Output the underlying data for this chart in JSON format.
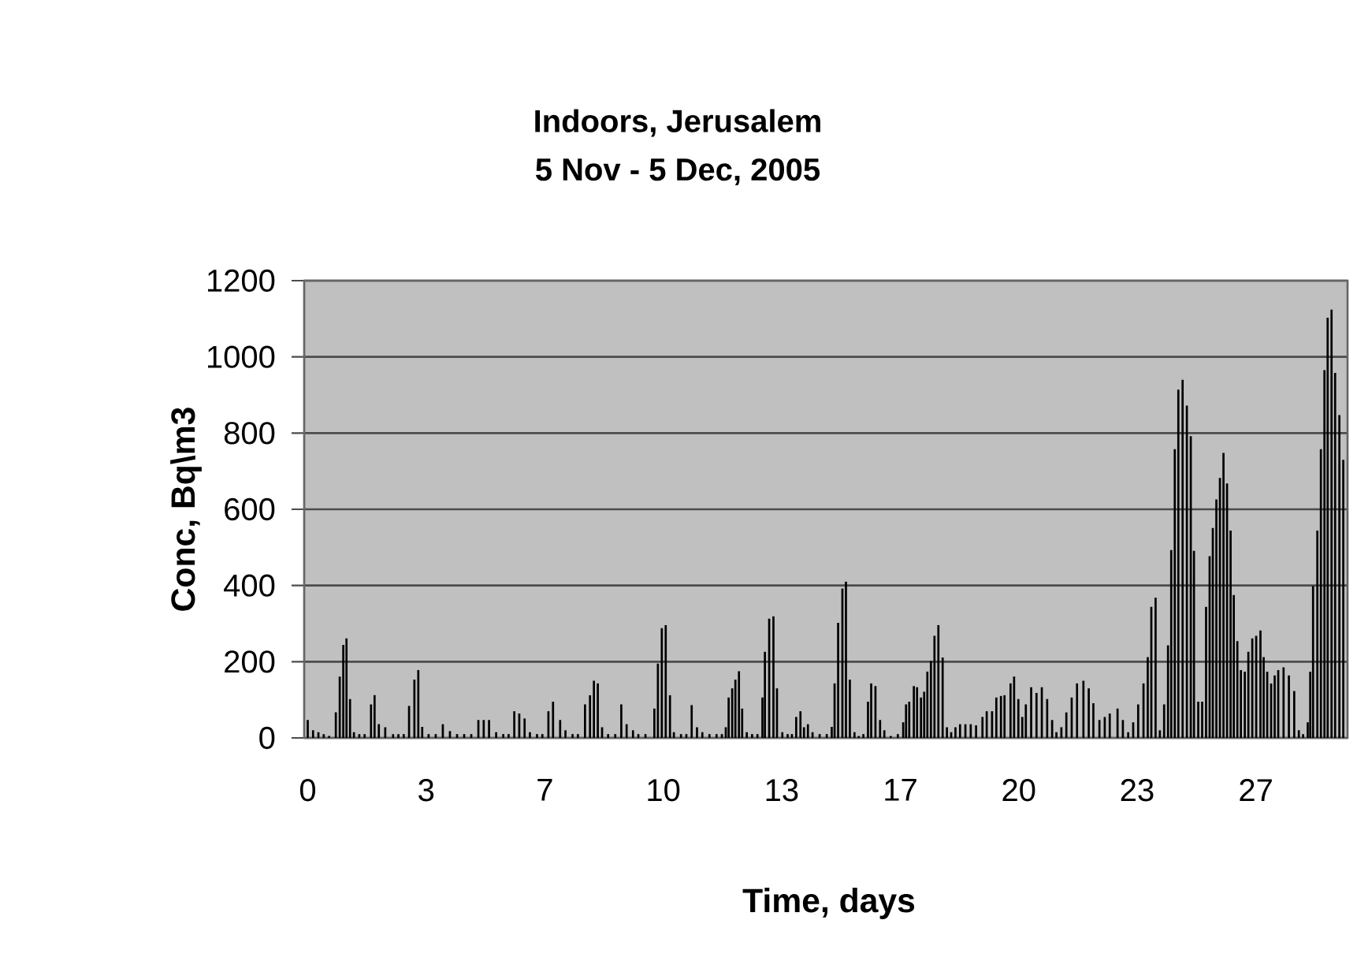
{
  "chart_data": {
    "type": "bar",
    "title": "Indoors, Jerusalem",
    "subtitle": "5 Nov - 5 Dec, 2005",
    "xlabel": "Time, days",
    "ylabel": "Conc, Bq\\m3",
    "color": "#000000",
    "grid": "y",
    "xlim": [
      -0.1,
      29.25
    ],
    "ylim": [
      0,
      1200
    ],
    "yticks": [
      0,
      200,
      400,
      600,
      800,
      1000,
      1200
    ],
    "xticks": [
      0,
      {
        "value": 3.33,
        "label": "3"
      },
      {
        "value": 6.67,
        "label": "7"
      },
      10,
      {
        "value": 13.33,
        "label": "13"
      },
      {
        "value": 16.67,
        "label": "17"
      },
      20,
      {
        "value": 23.33,
        "label": "23"
      },
      {
        "value": 26.67,
        "label": "27"
      }
    ],
    "x": [
      0,
      0.15,
      0.3,
      0.45,
      0.6,
      0.79,
      0.9,
      1.0,
      1.09,
      1.19,
      1.3,
      1.45,
      1.6,
      1.78,
      1.88,
      2.0,
      2.18,
      2.4,
      2.55,
      2.7,
      2.85,
      3.0,
      3.11,
      3.22,
      3.4,
      3.6,
      3.8,
      4.0,
      4.2,
      4.4,
      4.6,
      4.8,
      4.95,
      5.1,
      5.3,
      5.5,
      5.65,
      5.81,
      5.95,
      6.1,
      6.25,
      6.45,
      6.6,
      6.77,
      6.9,
      7.1,
      7.25,
      7.45,
      7.6,
      7.8,
      7.94,
      8.05,
      8.16,
      8.28,
      8.45,
      8.65,
      8.82,
      8.97,
      9.15,
      9.3,
      9.5,
      9.75,
      9.85,
      9.96,
      10.07,
      10.19,
      10.3,
      10.5,
      10.65,
      10.8,
      10.95,
      11.1,
      11.3,
      11.5,
      11.65,
      11.76,
      11.84,
      11.94,
      12.03,
      12.13,
      12.22,
      12.35,
      12.5,
      12.65,
      12.79,
      12.86,
      12.98,
      13.1,
      13.2,
      13.35,
      13.5,
      13.62,
      13.74,
      13.86,
      13.96,
      14.07,
      14.2,
      14.4,
      14.6,
      14.74,
      14.82,
      14.92,
      15.04,
      15.14,
      15.25,
      15.38,
      15.5,
      15.63,
      15.76,
      15.85,
      15.97,
      16.1,
      16.22,
      16.4,
      16.6,
      16.75,
      16.83,
      16.92,
      17.05,
      17.14,
      17.25,
      17.34,
      17.43,
      17.53,
      17.63,
      17.74,
      17.86,
      17.98,
      18.1,
      18.22,
      18.35,
      18.5,
      18.65,
      18.8,
      18.98,
      19.1,
      19.25,
      19.37,
      19.5,
      19.6,
      19.77,
      19.87,
      19.99,
      20.1,
      20.2,
      20.35,
      20.5,
      20.65,
      20.8,
      20.94,
      21.06,
      21.2,
      21.34,
      21.49,
      21.64,
      21.82,
      21.97,
      22.1,
      22.27,
      22.42,
      22.56,
      22.78,
      22.93,
      23.08,
      23.22,
      23.36,
      23.51,
      23.63,
      23.73,
      23.85,
      23.97,
      24.09,
      24.2,
      24.29,
      24.39,
      24.49,
      24.61,
      24.73,
      24.84,
      24.93,
      25.05,
      25.16,
      25.27,
      25.37,
      25.46,
      25.56,
      25.66,
      25.76,
      25.86,
      25.96,
      26.05,
      26.15,
      26.25,
      26.36,
      26.46,
      26.57,
      26.68,
      26.8,
      26.89,
      26.99,
      27.1,
      27.2,
      27.3,
      27.45,
      27.6,
      27.75,
      27.88,
      28.0,
      28.13,
      28.2,
      28.28,
      28.4,
      28.5,
      28.6,
      28.69,
      28.8,
      28.9,
      29.02,
      29.13
    ],
    "values": [
      47,
      20,
      15,
      10,
      5,
      67,
      161,
      244,
      261,
      102,
      15,
      10,
      10,
      88,
      112,
      36,
      28,
      10,
      10,
      10,
      84,
      153,
      178,
      29,
      10,
      10,
      36,
      18,
      10,
      10,
      10,
      47,
      47,
      47,
      15,
      10,
      10,
      70,
      64,
      51,
      15,
      10,
      10,
      70,
      95,
      47,
      20,
      10,
      10,
      88,
      112,
      150,
      143,
      28,
      10,
      10,
      88,
      36,
      20,
      10,
      10,
      77,
      195,
      288,
      296,
      112,
      15,
      10,
      10,
      86,
      28,
      15,
      10,
      10,
      10,
      28,
      106,
      130,
      153,
      175,
      77,
      15,
      10,
      10,
      106,
      226,
      313,
      319,
      130,
      15,
      10,
      10,
      55,
      70,
      28,
      36,
      15,
      10,
      10,
      29,
      143,
      302,
      392,
      410,
      153,
      15,
      5,
      10,
      95,
      143,
      136,
      47,
      20,
      5,
      10,
      41,
      88,
      95,
      136,
      133,
      106,
      121,
      174,
      202,
      268,
      296,
      211,
      28,
      15,
      28,
      36,
      36,
      36,
      33,
      55,
      70,
      70,
      106,
      110,
      112,
      143,
      161,
      102,
      55,
      88,
      133,
      118,
      133,
      102,
      47,
      15,
      28,
      67,
      106,
      143,
      150,
      130,
      91,
      47,
      55,
      64,
      77,
      47,
      15,
      41,
      88,
      143,
      212,
      344,
      368,
      20,
      88,
      243,
      493,
      758,
      914,
      940,
      872,
      792,
      491,
      95,
      95,
      344,
      477,
      551,
      626,
      682,
      748,
      668,
      544,
      375,
      254,
      178,
      174,
      226,
      261,
      268,
      282,
      212,
      174,
      143,
      164,
      178,
      185,
      164,
      123,
      20,
      10,
      41,
      174,
      399,
      544,
      758,
      965,
      1103,
      1124,
      958,
      847,
      730
    ]
  }
}
